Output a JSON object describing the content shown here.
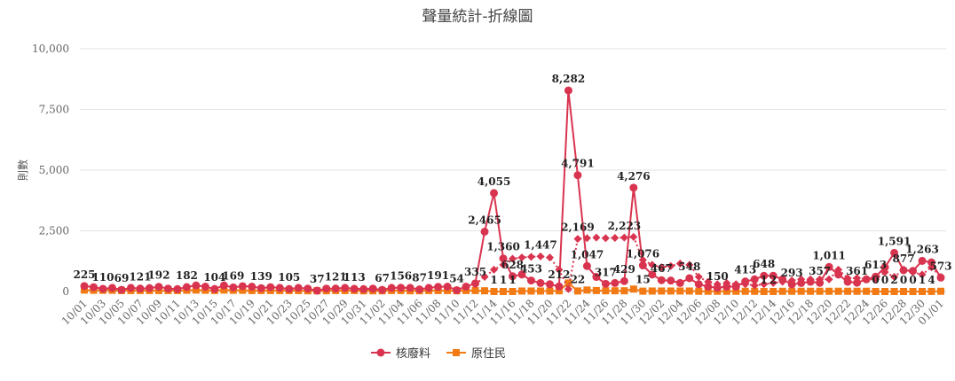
{
  "chart_data": {
    "type": "line",
    "title": "聲量統計-折線圖",
    "y_label": "則數",
    "categories": [
      "10/01",
      null,
      "10/03",
      null,
      "10/05",
      null,
      "10/07",
      null,
      "10/09",
      null,
      "10/11",
      null,
      "10/13",
      null,
      "10/15",
      null,
      "10/17",
      null,
      "10/19",
      null,
      "10/21",
      null,
      "10/23",
      null,
      "10/25",
      null,
      "10/27",
      null,
      "10/29",
      null,
      "10/31",
      null,
      "11/02",
      null,
      "11/04",
      null,
      "11/06",
      null,
      "11/08",
      null,
      "11/10",
      null,
      "11/12",
      null,
      "11/14",
      null,
      "11/16",
      null,
      "11/18",
      null,
      "11/20",
      null,
      "11/22",
      null,
      "11/24",
      null,
      "11/26",
      null,
      "11/28",
      null,
      "11/30",
      null,
      "12/02",
      null,
      "12/04",
      null,
      "12/06",
      null,
      "12/08",
      null,
      "12/10",
      null,
      "12/12",
      null,
      "12/14",
      null,
      "12/16",
      null,
      "12/18",
      null,
      "12/20",
      null,
      "12/22",
      null,
      "12/24",
      null,
      "12/26",
      null,
      "12/28",
      null,
      "12/30",
      null,
      "01/01"
    ],
    "series": [
      {
        "name": "核廢料",
        "color": "#d9344f",
        "marker": "circle",
        "dashed": false,
        "values": [
          225,
          180,
          110,
          150,
          69,
          150,
          121,
          140,
          192,
          120,
          100,
          182,
          250,
          200,
          104,
          250,
          169,
          220,
          200,
          139,
          180,
          150,
          105,
          150,
          120,
          37,
          120,
          121,
          150,
          113,
          100,
          120,
          67,
          150,
          156,
          150,
          87,
          150,
          191,
          200,
          54,
          200,
          335,
          2465,
          4055,
          1360,
          628,
          700,
          453,
          350,
          300,
          212,
          8282,
          4791,
          1047,
          600,
          317,
          350,
          429,
          4276,
          1076,
          700,
          467,
          450,
          350,
          548,
          300,
          200,
          150,
          200,
          200,
          413,
          500,
          648,
          650,
          500,
          293,
          350,
          400,
          357,
          1011,
          700,
          400,
          361,
          500,
          613,
          1000,
          1591,
          877,
          850,
          1263,
          1200,
          573
        ],
        "value_labels": [
          "225",
          null,
          "110",
          null,
          "69",
          null,
          "121",
          null,
          "192",
          null,
          null,
          "182",
          null,
          null,
          "104",
          null,
          "169",
          null,
          null,
          "139",
          null,
          null,
          "105",
          null,
          null,
          "37",
          null,
          "121",
          null,
          "113",
          null,
          null,
          "67",
          null,
          "156",
          null,
          "87",
          null,
          "191",
          null,
          "54",
          null,
          "335",
          "2,465",
          "4,055",
          "1,360",
          "628",
          null,
          "453",
          null,
          null,
          "212",
          "8,282",
          "4,791",
          "1,047",
          null,
          "317",
          null,
          "429",
          "4,276",
          "1,076",
          null,
          "467",
          null,
          null,
          "548",
          null,
          null,
          "150",
          null,
          null,
          "413",
          null,
          "648",
          null,
          null,
          "293",
          null,
          null,
          "357",
          "1,011",
          null,
          null,
          "361",
          null,
          "613",
          null,
          "1,591",
          "877",
          null,
          "1,263",
          null,
          "573"
        ]
      },
      {
        "name": "原住民",
        "color": "#f27a14",
        "marker": "square",
        "dashed": false,
        "values": [
          60,
          50,
          50,
          50,
          40,
          40,
          40,
          40,
          40,
          40,
          40,
          50,
          60,
          50,
          40,
          60,
          50,
          50,
          40,
          40,
          40,
          40,
          40,
          40,
          30,
          30,
          30,
          40,
          40,
          40,
          30,
          30,
          30,
          40,
          40,
          30,
          30,
          40,
          40,
          40,
          30,
          40,
          40,
          30,
          1,
          1,
          1,
          20,
          20,
          20,
          20,
          30,
          350,
          22,
          60,
          40,
          30,
          30,
          30,
          100,
          15,
          20,
          20,
          20,
          20,
          20,
          10,
          10,
          10,
          10,
          10,
          10,
          10,
          1,
          2,
          10,
          10,
          10,
          10,
          10,
          10,
          10,
          10,
          10,
          10,
          0,
          0,
          2,
          0,
          0,
          1,
          4,
          10
        ],
        "value_labels": [
          null,
          null,
          null,
          null,
          null,
          null,
          null,
          null,
          null,
          null,
          null,
          null,
          null,
          null,
          null,
          null,
          null,
          null,
          null,
          null,
          null,
          null,
          null,
          null,
          null,
          null,
          null,
          null,
          null,
          null,
          null,
          null,
          null,
          null,
          null,
          null,
          null,
          null,
          null,
          null,
          null,
          null,
          null,
          null,
          "1",
          "1",
          "1",
          null,
          null,
          null,
          null,
          null,
          null,
          "22",
          null,
          null,
          null,
          null,
          null,
          null,
          "15",
          null,
          null,
          null,
          null,
          null,
          null,
          null,
          null,
          null,
          null,
          null,
          null,
          "1",
          "2",
          null,
          null,
          null,
          null,
          null,
          null,
          null,
          null,
          null,
          null,
          "0",
          "0",
          "2",
          "0",
          "0",
          "1",
          "4",
          null
        ]
      },
      {
        "color": "#d9344f",
        "marker": "diamond",
        "dashed": true,
        "values": [
          null,
          null,
          null,
          null,
          null,
          null,
          null,
          null,
          null,
          null,
          null,
          null,
          null,
          null,
          null,
          null,
          null,
          null,
          null,
          null,
          null,
          null,
          null,
          null,
          null,
          null,
          null,
          null,
          null,
          null,
          null,
          null,
          null,
          null,
          null,
          null,
          null,
          null,
          null,
          null,
          null,
          null,
          300,
          600,
          900,
          1100,
          1350,
          1400,
          1430,
          1447,
          1400,
          900,
          100,
          2169,
          2200,
          2220,
          2200,
          2210,
          2223,
          2250,
          1300,
          1100,
          1000,
          1050,
          1150,
          1100,
          600,
          400,
          300,
          350,
          300,
          300,
          250,
          300,
          350,
          400,
          450,
          500,
          500,
          500,
          500,
          900,
          550,
          550,
          500,
          500,
          800,
          600,
          900,
          800,
          700,
          1000,
          600
        ],
        "value_labels": [
          null,
          null,
          null,
          null,
          null,
          null,
          null,
          null,
          null,
          null,
          null,
          null,
          null,
          null,
          null,
          null,
          null,
          null,
          null,
          null,
          null,
          null,
          null,
          null,
          null,
          null,
          null,
          null,
          null,
          null,
          null,
          null,
          null,
          null,
          null,
          null,
          null,
          null,
          null,
          null,
          null,
          null,
          null,
          null,
          null,
          null,
          null,
          null,
          null,
          "1,447",
          null,
          null,
          null,
          "2,169",
          null,
          null,
          null,
          null,
          "2,223",
          null,
          null,
          null,
          null,
          null,
          null,
          null,
          null,
          null,
          null,
          null,
          null,
          null,
          null,
          null,
          null,
          null,
          null,
          null,
          null,
          null,
          null,
          null,
          null,
          null,
          null,
          null,
          null,
          null,
          null,
          null,
          null,
          null,
          null
        ]
      }
    ],
    "ylim": [
      0,
      10000
    ],
    "yticks": [
      0,
      {
        "value": 2500,
        "label": "2,500"
      },
      {
        "value": 5000,
        "label": "5,000"
      },
      {
        "value": 7500,
        "label": "7,500"
      },
      {
        "value": 10000,
        "label": "10,000"
      }
    ],
    "grid": true,
    "legend": "bottom"
  }
}
